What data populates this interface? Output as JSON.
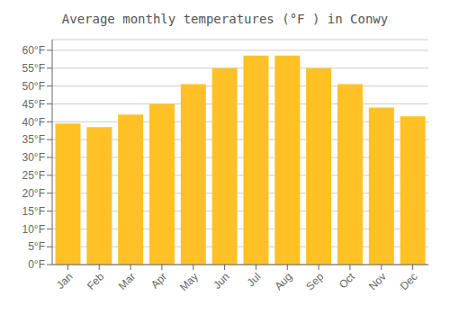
{
  "chart_data": {
    "type": "bar",
    "title": "Average monthly temperatures (°F ) in Conwy",
    "categories": [
      "Jan",
      "Feb",
      "Mar",
      "Apr",
      "May",
      "Jun",
      "Jul",
      "Aug",
      "Sep",
      "Oct",
      "Nov",
      "Dec"
    ],
    "values": [
      39.5,
      38.5,
      42.0,
      45.0,
      50.5,
      55.0,
      58.5,
      58.5,
      55.0,
      50.5,
      44.0,
      41.5
    ],
    "color": "#FFC125",
    "ylim": [
      0,
      63
    ],
    "yticks": [
      {
        "value": 0,
        "label": "0°F"
      },
      {
        "value": 5,
        "label": "5°F"
      },
      {
        "value": 10,
        "label": "10°F"
      },
      {
        "value": 15,
        "label": "15°F"
      },
      {
        "value": 20,
        "label": "20°F"
      },
      {
        "value": 25,
        "label": "25°F"
      },
      {
        "value": 30,
        "label": "30°F"
      },
      {
        "value": 35,
        "label": "35°F"
      },
      {
        "value": 40,
        "label": "40°F"
      },
      {
        "value": 45,
        "label": "45°F"
      },
      {
        "value": 50,
        "label": "50°F"
      },
      {
        "value": 55,
        "label": "55°F"
      },
      {
        "value": 60,
        "label": "60°F"
      }
    ],
    "grid": true
  }
}
